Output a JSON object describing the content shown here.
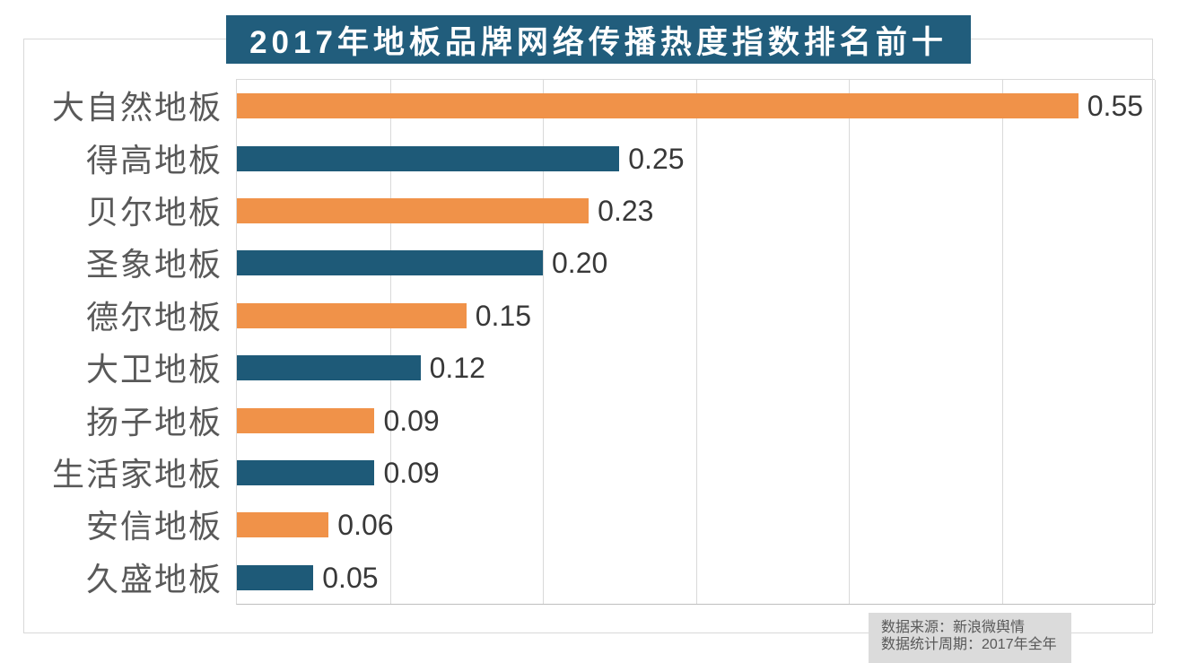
{
  "title": "2017年地板品牌网络传播热度指数排名前十",
  "source_note": {
    "line1": "数据来源：新浪微舆情",
    "line2": "数据统计周期：2017年全年"
  },
  "chart_data": {
    "type": "bar",
    "orientation": "horizontal",
    "title": "2017年地板品牌网络传播热度指数排名前十",
    "categories": [
      "大自然地板",
      "得高地板",
      "贝尔地板",
      "圣象地板",
      "德尔地板",
      "大卫地板",
      "扬子地板",
      "生活家地板",
      "安信地板",
      "久盛地板"
    ],
    "values": [
      0.55,
      0.25,
      0.23,
      0.2,
      0.15,
      0.12,
      0.09,
      0.09,
      0.06,
      0.05
    ],
    "value_labels": [
      "0.55",
      "0.25",
      "0.23",
      "0.20",
      "0.15",
      "0.12",
      "0.09",
      "0.09",
      "0.06",
      "0.05"
    ],
    "xlabel": "",
    "ylabel": "",
    "xlim": [
      0,
      0.6
    ],
    "x_gridlines": [
      0.1,
      0.2,
      0.3,
      0.4,
      0.5,
      0.6
    ],
    "axis_tick_labels_visible": false,
    "grid": true,
    "legend": false,
    "bar_colors": [
      "#f09249",
      "#1e5a78"
    ],
    "bar_color_note": "alternating orange/teal by row"
  },
  "colors": {
    "orange_bar": "#f09249",
    "teal_bar": "#1e5a78",
    "title_bg": "#215d7c",
    "title_text": "#ffffff",
    "gridline": "#d9d9d9",
    "frame_border": "#d9d9d9",
    "axis_line": "#bfbfbf",
    "category_text": "#595959",
    "value_text": "#383838",
    "note_bg": "#dbdbdb",
    "note_text": "#595959"
  }
}
